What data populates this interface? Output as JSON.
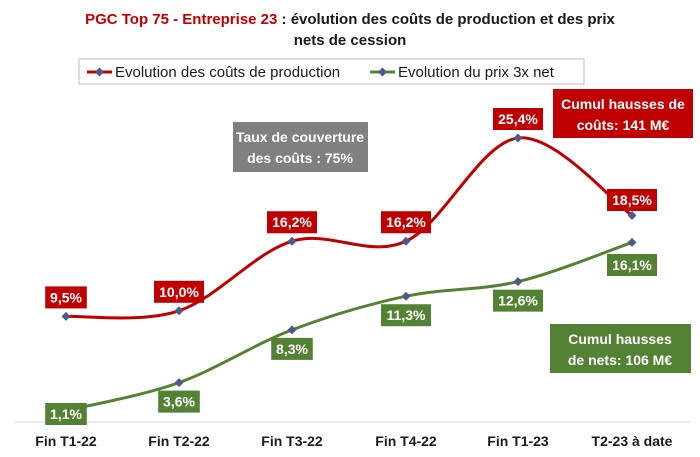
{
  "title": {
    "part1": "PGC Top 75 - Entreprise 23",
    "part2": " : évolution des coûts de production et des prix",
    "line2": "nets de cession"
  },
  "colors": {
    "cost": "#c00000",
    "price": "#548235",
    "coverage_box": "#808080",
    "marker": "#4a5a8c",
    "title_accent": "#c00000"
  },
  "callouts": {
    "coverage": [
      "Taux de couverture",
      "des coûts : 75%"
    ],
    "cost_cumul": [
      "Cumul hausses de",
      "coûts: 141 M€"
    ],
    "price_cumul": [
      "Cumul hausses",
      "de nets: 106 M€"
    ]
  },
  "chart_data": {
    "type": "line",
    "categories": [
      "Fin T1-22",
      "Fin T2-22",
      "Fin T3-22",
      "Fin T4-22",
      "Fin T1-23",
      "T2-23 à date"
    ],
    "series": [
      {
        "name": "Evolution des coûts de production",
        "values": [
          9.5,
          10.0,
          16.2,
          16.2,
          25.4,
          18.5
        ],
        "labels": [
          "9,5%",
          "10,0%",
          "16,2%",
          "16,2%",
          "25,4%",
          "18,5%"
        ],
        "color": "#c00000"
      },
      {
        "name": "Evolution du prix 3x net",
        "values": [
          1.1,
          3.6,
          8.3,
          11.3,
          12.6,
          16.1
        ],
        "labels": [
          "1,1%",
          "3,6%",
          "8,3%",
          "11,3%",
          "12,6%",
          "16,1%"
        ],
        "color": "#548235"
      }
    ],
    "grid": false,
    "legend_placement": "top"
  }
}
